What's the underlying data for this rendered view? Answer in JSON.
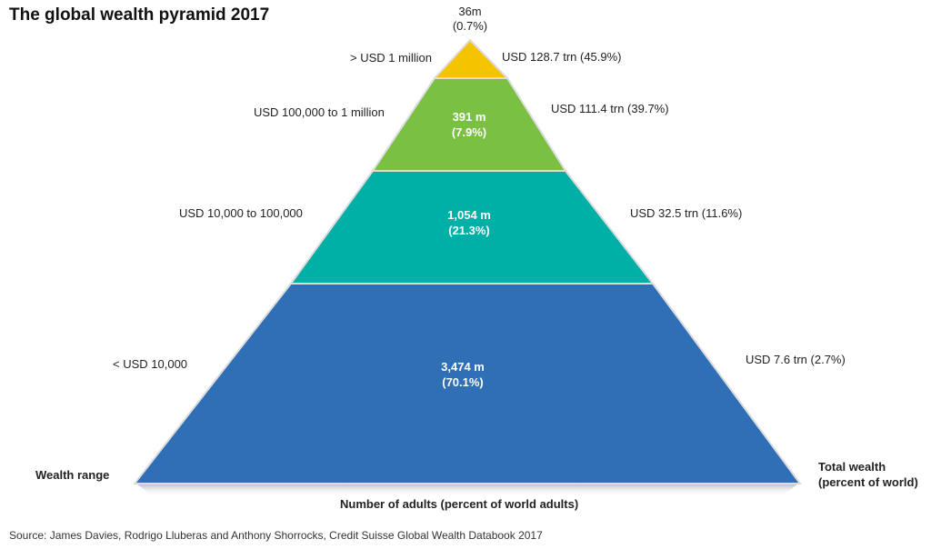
{
  "title": "The global wealth pyramid 2017",
  "colors": {
    "tier_top": "#F5C400",
    "tier_upper": "#7AC043",
    "tier_middle": "#00AFA5",
    "tier_bottom": "#2E6FB5"
  },
  "tiers": [
    {
      "range": ">  USD 1 million",
      "adults": "36m",
      "adults_pct": "(0.7%)",
      "wealth": "USD 128.7 trn (45.9%)"
    },
    {
      "range": "USD 100,000  to 1 million",
      "adults": "391 m",
      "adults_pct": "(7.9%)",
      "wealth": "USD 111.4 trn (39.7%)"
    },
    {
      "range": "USD 10,000  to 100,000",
      "adults": "1,054 m",
      "adults_pct": "(21.3%)",
      "wealth": "USD 32.5 trn (11.6%)"
    },
    {
      "range": "<  USD 10,000",
      "adults": "3,474 m",
      "adults_pct": "(70.1%)",
      "wealth": "USD 7.6 trn (2.7%)"
    }
  ],
  "left_axis_label": "Wealth range",
  "right_axis_label_line1": "Total wealth",
  "right_axis_label_line2": "(percent of world)",
  "bottom_label": "Number of adults (percent of world adults)",
  "source": "Source: James Davies, Rodrigo Lluberas and Anthony Shorrocks, Credit Suisse Global Wealth Databook 2017"
}
